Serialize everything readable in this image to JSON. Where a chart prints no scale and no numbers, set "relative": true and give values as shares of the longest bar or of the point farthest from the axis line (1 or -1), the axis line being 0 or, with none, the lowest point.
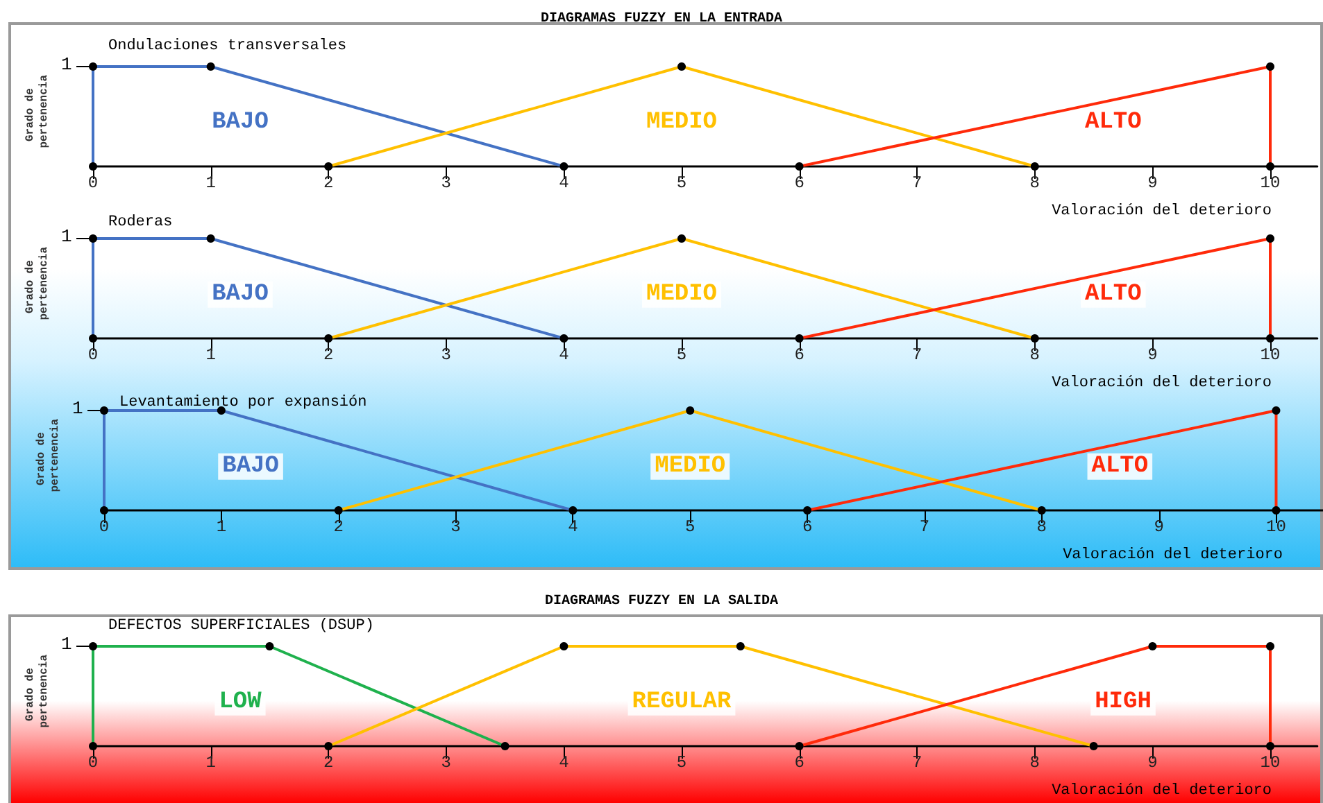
{
  "chart_data": [
    {
      "type": "line",
      "relative": true,
      "title": "Ondulaciones transversales",
      "annotations": [
        "1",
        "DIAGRAMAS FUZZY EN LA ENTRADA"
      ],
      "xlabel": "Valoración del deterioro",
      "ylabel": "Grado de pertenencia",
      "xlim": [
        0,
        10.4
      ],
      "xticks": [
        0,
        1,
        2,
        3,
        4,
        5,
        6,
        7,
        8,
        9,
        10
      ],
      "legend": false,
      "marker": "circle",
      "line_style": "solid",
      "series": [
        {
          "name": "BAJO",
          "color": "#4472c4",
          "x": [
            0,
            0,
            1,
            4
          ],
          "values": [
            0,
            1,
            1,
            0
          ]
        },
        {
          "name": "MEDIO",
          "color": "#ffc000",
          "x": [
            2,
            5,
            8
          ],
          "values": [
            0,
            1,
            0
          ]
        },
        {
          "name": "ALTO",
          "color": "#ff2a0a",
          "x": [
            6,
            10,
            10
          ],
          "values": [
            0,
            1,
            0
          ]
        }
      ]
    },
    {
      "type": "line",
      "relative": true,
      "title": "Roderas",
      "annotations": [
        "1"
      ],
      "xlabel": "Valoración del deterioro",
      "ylabel": "Grado de pertenencia",
      "xlim": [
        0,
        10.4
      ],
      "xticks": [
        0,
        1,
        2,
        3,
        4,
        5,
        6,
        7,
        8,
        9,
        10
      ],
      "legend": false,
      "marker": "circle",
      "line_style": "solid",
      "series": [
        {
          "name": "BAJO",
          "color": "#4472c4",
          "x": [
            0,
            0,
            1,
            4
          ],
          "values": [
            0,
            1,
            1,
            0
          ]
        },
        {
          "name": "MEDIO",
          "color": "#ffc000",
          "x": [
            2,
            5,
            8
          ],
          "values": [
            0,
            1,
            0
          ]
        },
        {
          "name": "ALTO",
          "color": "#ff2a0a",
          "x": [
            6,
            10,
            10
          ],
          "values": [
            0,
            1,
            0
          ]
        }
      ]
    },
    {
      "type": "line",
      "relative": true,
      "title": "Levantamiento por expansión",
      "annotations": [
        "1"
      ],
      "xlabel": "Valoración del deterioro",
      "ylabel": "Grado de pertenencia",
      "xlim": [
        0,
        10.4
      ],
      "xticks": [
        0,
        1,
        2,
        3,
        4,
        5,
        6,
        7,
        8,
        9,
        10
      ],
      "legend": false,
      "marker": "circle",
      "line_style": "solid",
      "series": [
        {
          "name": "BAJO",
          "color": "#4472c4",
          "x": [
            0,
            0,
            1,
            4
          ],
          "values": [
            0,
            1,
            1,
            0
          ]
        },
        {
          "name": "MEDIO",
          "color": "#ffc000",
          "x": [
            2,
            5,
            8
          ],
          "values": [
            0,
            1,
            0
          ]
        },
        {
          "name": "ALTO",
          "color": "#ff2a0a",
          "x": [
            6,
            10,
            10
          ],
          "values": [
            0,
            1,
            0
          ]
        }
      ]
    },
    {
      "type": "line",
      "relative": true,
      "title": "DEFECTOS SUPERFICIALES (DSUP)",
      "annotations": [
        "1",
        "DIAGRAMAS FUZZY EN LA SALIDA"
      ],
      "xlabel": "Valoración del deterioro",
      "ylabel": "Grado de pertenencia",
      "xlim": [
        0,
        10.4
      ],
      "xticks": [
        0,
        1,
        2,
        3,
        4,
        5,
        6,
        7,
        8,
        9,
        10
      ],
      "legend": false,
      "marker": "circle",
      "line_style": "solid",
      "series": [
        {
          "name": "LOW",
          "color": "#1fb14d",
          "x": [
            0,
            0,
            1.5,
            3.5
          ],
          "values": [
            0,
            1,
            1,
            0
          ]
        },
        {
          "name": "REGULAR",
          "color": "#ffc000",
          "x": [
            2,
            4,
            5.5,
            8.5
          ],
          "values": [
            0,
            1,
            1,
            0
          ]
        },
        {
          "name": "HIGH",
          "color": "#ff2a0a",
          "x": [
            6,
            9,
            10,
            10
          ],
          "values": [
            0,
            1,
            1,
            0
          ]
        }
      ]
    }
  ]
}
